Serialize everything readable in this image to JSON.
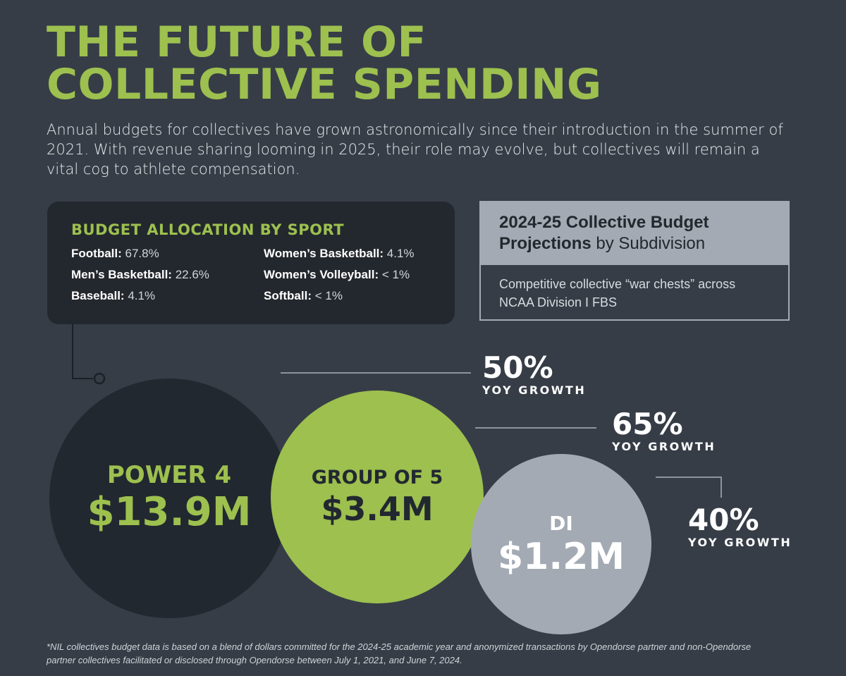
{
  "title": {
    "line1": "THE FUTURE OF",
    "line2": "COLLECTIVE SPENDING"
  },
  "subtitle": "Annual budgets for collectives have grown astronomically since their introduction in the summer of 2021.  With revenue sharing looming in 2025, their role may evolve, but collectives will remain a vital cog to athlete compensation.",
  "allocation": {
    "heading": "BUDGET ALLOCATION BY SPORT",
    "items": [
      {
        "label": "Football:",
        "value": "67.8%"
      },
      {
        "label": "Women’s Basketball:",
        "value": "4.1%"
      },
      {
        "label": "Men’s Basketball:",
        "value": "22.6%"
      },
      {
        "label": "Women’s Volleyball:",
        "value": "< 1%"
      },
      {
        "label": "Baseball:",
        "value": "4.1%"
      },
      {
        "label": "Softball:",
        "value": "< 1%"
      }
    ]
  },
  "projections": {
    "title_line1": "2024-25 Collective Budget",
    "title_bold2": "Projections",
    "title_rest2": " by Subdivision",
    "body_line1": "Competitive collective “war chests” across",
    "body_line2": "NCAA Division I FBS"
  },
  "subdivisions": [
    {
      "name": "POWER 4",
      "amount": "$13.9M",
      "growth": "50%",
      "growth_label": "YOY GROWTH"
    },
    {
      "name": "GROUP OF 5",
      "amount": "$3.4M",
      "growth": "65%",
      "growth_label": "YOY GROWTH"
    },
    {
      "name": "DI",
      "amount": "$1.2M",
      "growth": "40%",
      "growth_label": "YOY GROWTH"
    }
  ],
  "footnote": {
    "line1": "*NIL collectives budget data is based on a blend of dollars committed for the 2024-25 academic year and anonymized transactions by Opendorse partner and non-Opendorse",
    "line2": "partner collectives facilitated or disclosed through Opendorse between July 1, 2021, and June 7, 2024."
  },
  "colors": {
    "background": "#363d47",
    "accent_green": "#9dc04f",
    "dark_panel": "#23282e",
    "gray": "#a3aab3"
  }
}
